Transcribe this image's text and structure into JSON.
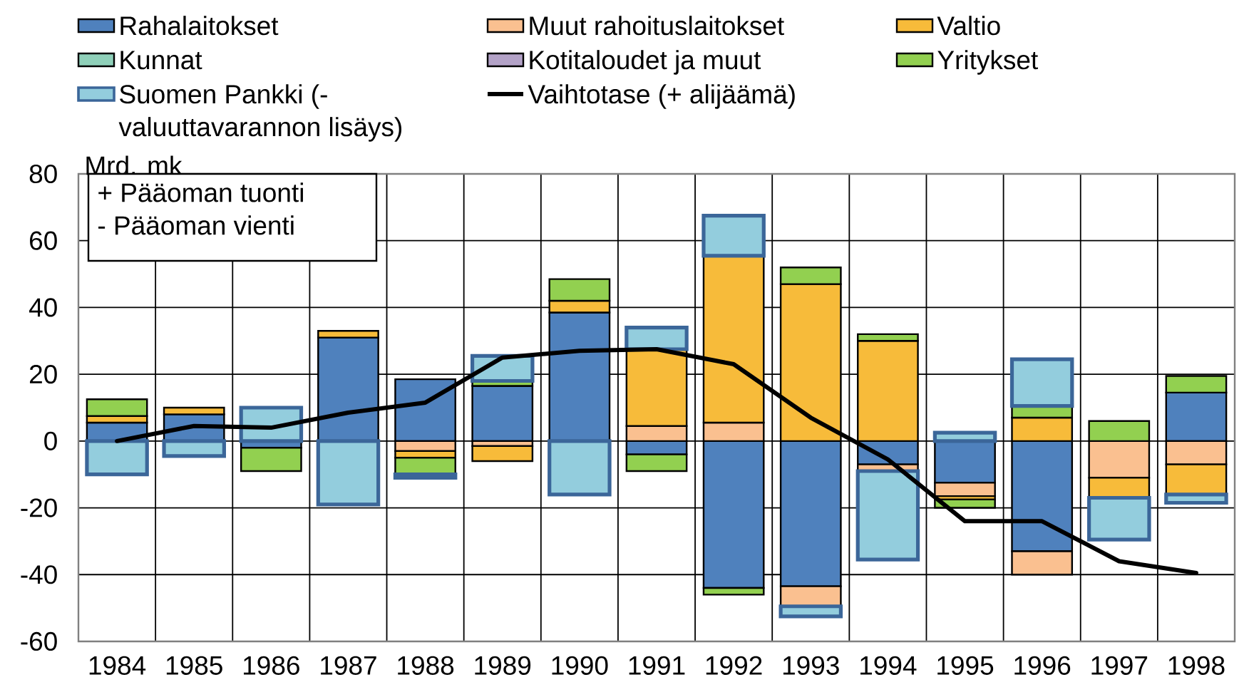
{
  "chart_data": {
    "type": "bar",
    "stacked": true,
    "ylabel": "Mrd. mk",
    "legend": "top",
    "grid": true,
    "categories": [
      "1984",
      "1985",
      "1986",
      "1987",
      "1988",
      "1989",
      "1990",
      "1991",
      "1992",
      "1993",
      "1994",
      "1995",
      "1996",
      "1997",
      "1998"
    ],
    "ylim": [
      -60,
      80
    ],
    "yticks": [
      -60,
      -40,
      -20,
      0,
      20,
      40,
      60,
      80
    ],
    "annotations": [
      "+ Pääoman tuonti",
      "- Pääoman vienti"
    ],
    "series": [
      {
        "name": "Rahalaitokset",
        "color": "#4f81bd",
        "values": [
          5.5,
          8,
          -2,
          31,
          18.5,
          16.5,
          38.5,
          -4,
          -44,
          -43.5,
          -7,
          -12.5,
          -33,
          null,
          14.5
        ]
      },
      {
        "name": "Muut rahoituslaitokset",
        "color": "#fac090",
        "values": [
          null,
          null,
          null,
          null,
          -3,
          -1.5,
          null,
          4.5,
          5.5,
          -6,
          -2,
          -4,
          -7,
          -11,
          -7
        ]
      },
      {
        "name": "Valtio",
        "color": "#f7bb3a",
        "values": [
          2,
          2,
          null,
          2,
          -2,
          -4.5,
          3.5,
          23,
          50,
          47,
          30,
          -1,
          7,
          -6,
          -9
        ]
      },
      {
        "name": "Kunnat",
        "color": "#8fd0b9",
        "values": [
          null,
          null,
          null,
          null,
          null,
          null,
          null,
          null,
          null,
          null,
          null,
          null,
          null,
          null,
          null
        ]
      },
      {
        "name": "Kotitaloudet ja muut",
        "color": "#b3a2c7",
        "values": [
          null,
          null,
          null,
          null,
          null,
          null,
          null,
          null,
          null,
          null,
          null,
          null,
          null,
          null,
          null
        ]
      },
      {
        "name": "Yritykset",
        "color": "#92d050",
        "values": [
          5,
          null,
          -7,
          null,
          -5,
          1.5,
          6.5,
          -5,
          -2,
          5,
          2,
          -2.5,
          3.5,
          6,
          5
        ]
      },
      {
        "name": "Suomen Pankki (- valuuttavarannon lisäys)",
        "color": "#93cddd",
        "values": [
          -10,
          -4.5,
          10,
          -19,
          -1,
          7.5,
          -16,
          6.5,
          12,
          -3,
          -26.5,
          2.5,
          14,
          -12.5,
          -2.5
        ]
      },
      {
        "name": "Vaihtotase (+ alijäämä)",
        "type": "line",
        "color": "#000000",
        "values": [
          0,
          4.5,
          4,
          8.5,
          11.5,
          25,
          27,
          27.5,
          23,
          7,
          -5.5,
          -24,
          -24,
          -36,
          -39.5
        ]
      }
    ]
  }
}
